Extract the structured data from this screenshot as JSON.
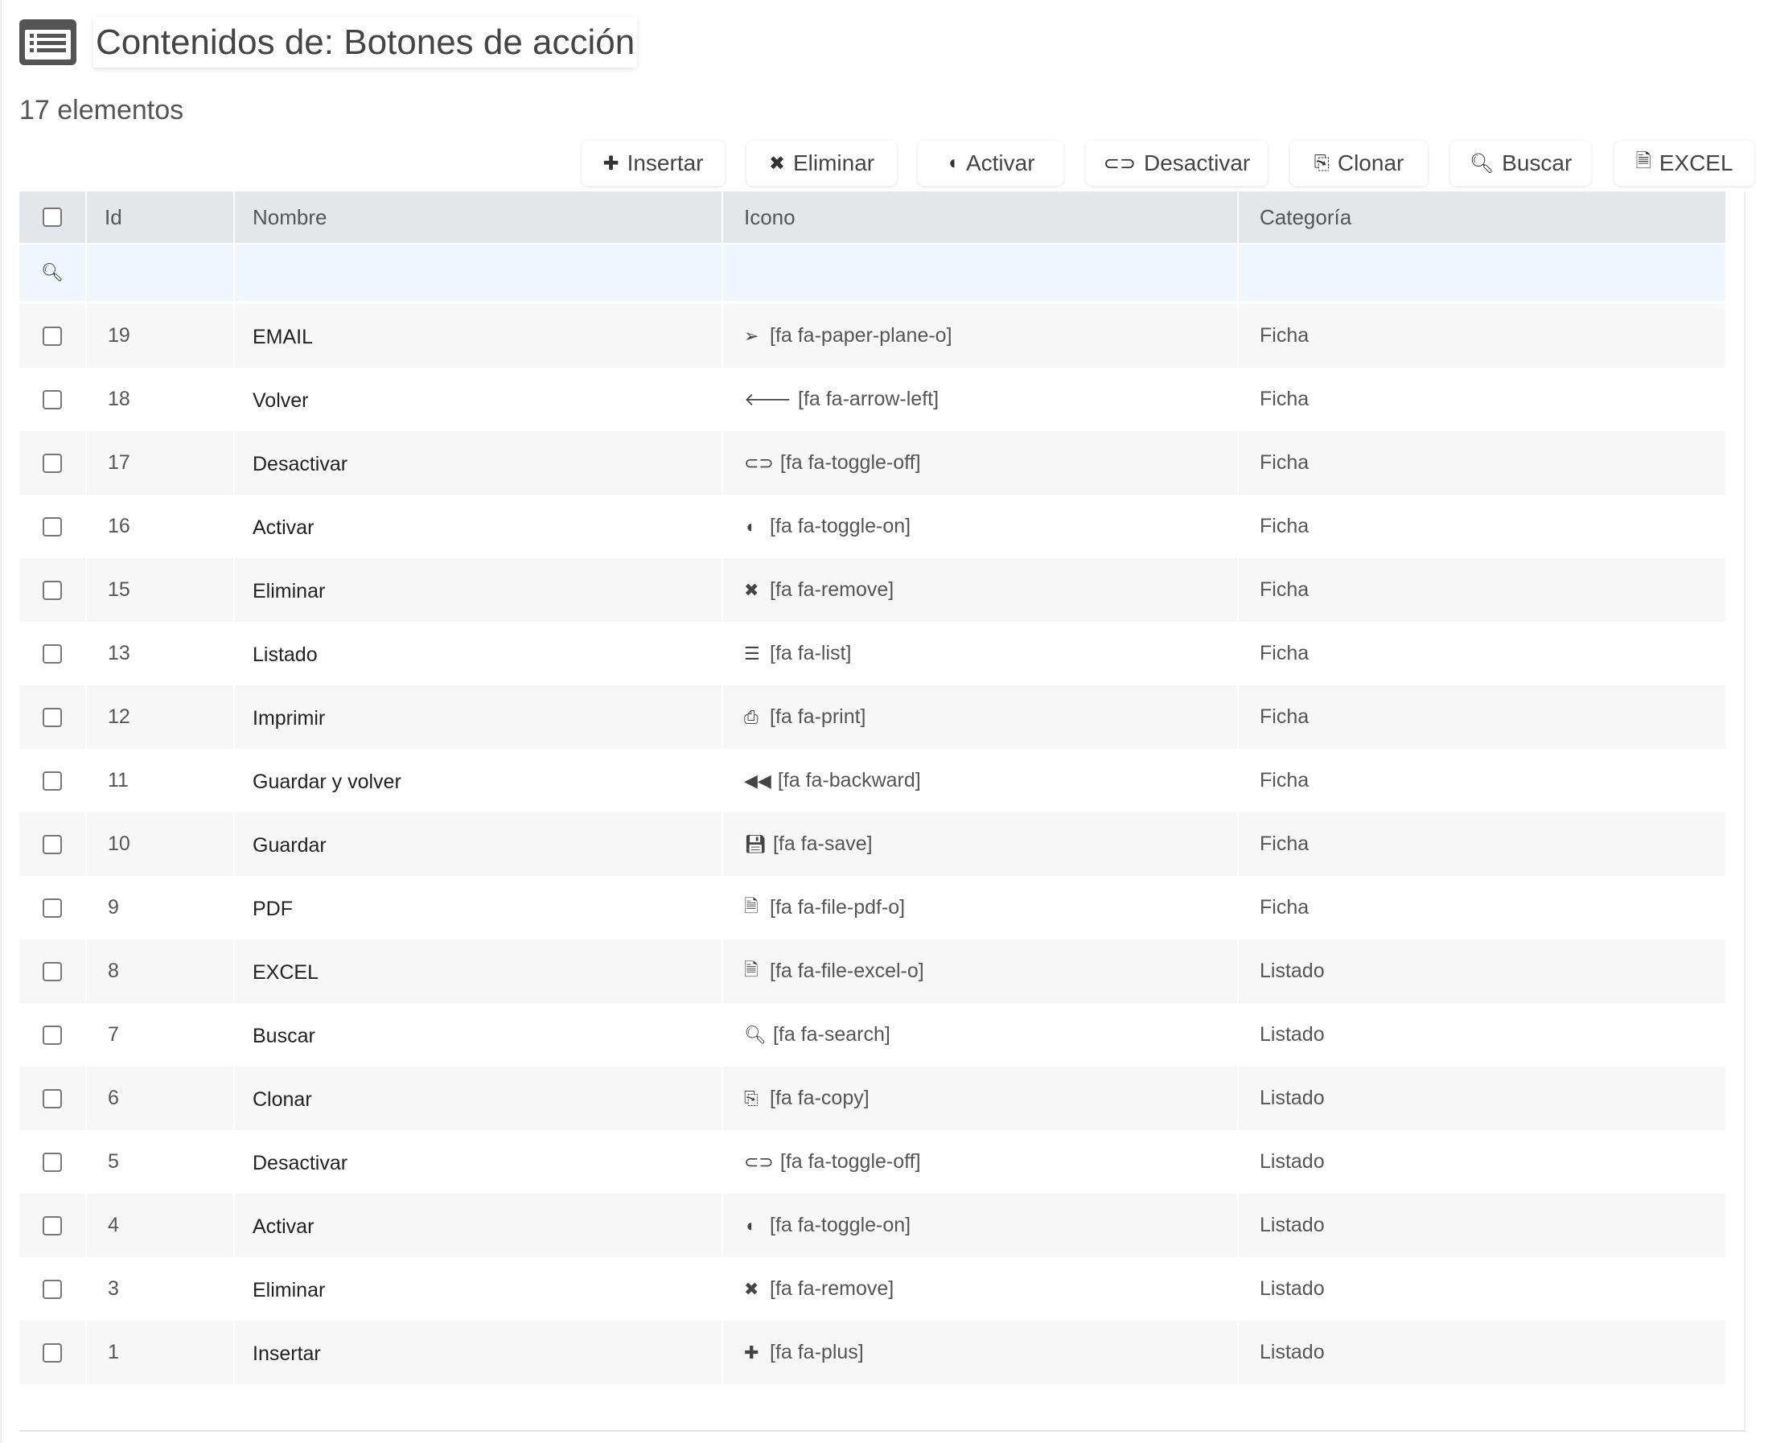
{
  "header": {
    "title": "Contenidos de: Botones de acción",
    "count": "17 elementos",
    "icon": "list-alt-icon"
  },
  "toolbar": [
    {
      "label": "Insertar",
      "icon": "✚"
    },
    {
      "label": "Eliminar",
      "icon": "✖"
    },
    {
      "label": "Activar",
      "icon": "◖"
    },
    {
      "label": "Desactivar",
      "icon": "⊂⊃"
    },
    {
      "label": "Clonar",
      "icon": "⎘"
    },
    {
      "label": "Buscar",
      "icon": "🔍︎"
    },
    {
      "label": "EXCEL",
      "icon": "🗎"
    }
  ],
  "table": {
    "columns": [
      "Id",
      "Nombre",
      "Icono",
      "Categoría"
    ],
    "rows": [
      {
        "id": "19",
        "nombre": "EMAIL",
        "icon": "➢",
        "icono": "[fa fa-paper-plane-o]",
        "categoria": "Ficha"
      },
      {
        "id": "18",
        "nombre": "Volver",
        "icon": "🡐",
        "icono": "[fa fa-arrow-left]",
        "categoria": "Ficha"
      },
      {
        "id": "17",
        "nombre": "Desactivar",
        "icon": "⊂⊃",
        "icono": "[fa fa-toggle-off]",
        "categoria": "Ficha"
      },
      {
        "id": "16",
        "nombre": "Activar",
        "icon": "◖",
        "icono": "[fa fa-toggle-on]",
        "categoria": "Ficha"
      },
      {
        "id": "15",
        "nombre": "Eliminar",
        "icon": "✖",
        "icono": "[fa fa-remove]",
        "categoria": "Ficha"
      },
      {
        "id": "13",
        "nombre": "Listado",
        "icon": "☰",
        "icono": "[fa fa-list]",
        "categoria": "Ficha"
      },
      {
        "id": "12",
        "nombre": "Imprimir",
        "icon": "⎙",
        "icono": "[fa fa-print]",
        "categoria": "Ficha"
      },
      {
        "id": "11",
        "nombre": "Guardar y volver",
        "icon": "◀◀",
        "icono": "[fa fa-backward]",
        "categoria": "Ficha"
      },
      {
        "id": "10",
        "nombre": "Guardar",
        "icon": "💾︎",
        "icono": "[fa fa-save]",
        "categoria": "Ficha"
      },
      {
        "id": "9",
        "nombre": "PDF",
        "icon": "🗎",
        "icono": "[fa fa-file-pdf-o]",
        "categoria": "Ficha"
      },
      {
        "id": "8",
        "nombre": "EXCEL",
        "icon": "🗎",
        "icono": "[fa fa-file-excel-o]",
        "categoria": "Listado"
      },
      {
        "id": "7",
        "nombre": "Buscar",
        "icon": "🔍︎",
        "icono": "[fa fa-search]",
        "categoria": "Listado"
      },
      {
        "id": "6",
        "nombre": "Clonar",
        "icon": "⎘",
        "icono": "[fa fa-copy]",
        "categoria": "Listado"
      },
      {
        "id": "5",
        "nombre": "Desactivar",
        "icon": "⊂⊃",
        "icono": "[fa fa-toggle-off]",
        "categoria": "Listado"
      },
      {
        "id": "4",
        "nombre": "Activar",
        "icon": "◖",
        "icono": "[fa fa-toggle-on]",
        "categoria": "Listado"
      },
      {
        "id": "3",
        "nombre": "Eliminar",
        "icon": "✖",
        "icono": "[fa fa-remove]",
        "categoria": "Listado"
      },
      {
        "id": "1",
        "nombre": "Insertar",
        "icon": "✚",
        "icono": "[fa fa-plus]",
        "categoria": "Listado"
      }
    ]
  }
}
